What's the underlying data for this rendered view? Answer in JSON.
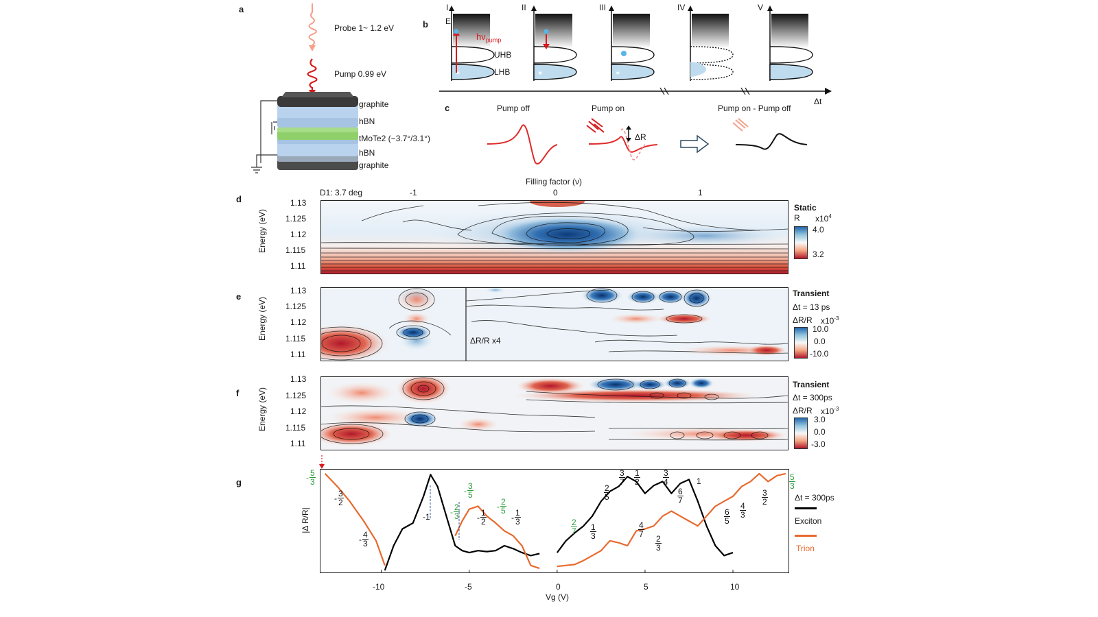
{
  "panel_letters": {
    "a": "a",
    "b": "b",
    "c": "c",
    "d": "d",
    "e": "e",
    "f": "f",
    "g": "g"
  },
  "panel_a": {
    "probe_label": "Probe 1~ 1.2 eV",
    "pump_label": "Pump 0.99 eV",
    "layers": [
      "graphite",
      "hBN",
      "tMoTe2 (~3.7°/3.1°)",
      "hBN",
      "graphite"
    ],
    "colors": {
      "probe": "#f4a08a",
      "pump": "#d7191c",
      "graphite": "#3a3a3a",
      "hbn": "#b9d3ee",
      "tmote2": "#8fd06b"
    }
  },
  "panel_b": {
    "stage_labels": [
      "I",
      "II",
      "III",
      "IV",
      "V"
    ],
    "energy_label": "E",
    "pump_label": "hν",
    "pump_subscript": "pump",
    "uhb_label": "UHB",
    "lhb_label": "LHB",
    "time_label": "Δt"
  },
  "panel_c": {
    "pump_off": "Pump off",
    "pump_on": "Pump on",
    "difference": "Pump on - Pump off",
    "delta_r": "ΔR"
  },
  "panel_d": {
    "top_axis_title": "Filling factor (ν)",
    "top_ticks": [
      "-1",
      "0",
      "1"
    ],
    "device_label": "D1: 3.7 deg",
    "ylabel": "Energy (eV)",
    "yticks": [
      "1.13",
      "1.125",
      "1.12",
      "1.115",
      "1.11"
    ],
    "cb_title": "Static",
    "cb_quantity": "R",
    "cb_scale": "x10",
    "cb_exp": "4",
    "cb_max": "4.0",
    "cb_min": "3.2"
  },
  "panel_e": {
    "ylabel": "Energy (eV)",
    "yticks": [
      "1.13",
      "1.125",
      "1.12",
      "1.115",
      "1.11"
    ],
    "cb_title": "Transient",
    "cb_delay": "Δt = 13 ps",
    "cb_quantity": "ΔR/R",
    "cb_scale": "x10",
    "cb_exp": "-3",
    "cb_max": "10.0",
    "cb_mid": "0.0",
    "cb_min": "-10.0",
    "inset_label": "ΔR/R x4"
  },
  "panel_f": {
    "ylabel": "Energy (eV)",
    "yticks": [
      "1.13",
      "1.125",
      "1.12",
      "1.115",
      "1.11"
    ],
    "cb_title": "Transient",
    "cb_delay": "Δt = 300ps",
    "cb_quantity": "ΔR/R",
    "cb_scale": "x10",
    "cb_exp": "-3",
    "cb_max": "3.0",
    "cb_mid": "0.0",
    "cb_min": "-3.0"
  },
  "panel_g": {
    "ylabel": "|Δ R/R|",
    "xlabel": "Vg (V)",
    "xticks": [
      "-10",
      "-5",
      "0",
      "5",
      "10"
    ],
    "legend_delay": "Δt = 300ps",
    "legend_exciton": "Exciton",
    "legend_trion": "Trion",
    "colors": {
      "exciton": "#000000",
      "trion": "#e8692e",
      "green": "#2e9a3c"
    },
    "fractions_exciton": [
      {
        "num": "3",
        "den": "2",
        "sign": "-"
      },
      {
        "num": "4",
        "den": "3",
        "sign": "-"
      },
      {
        "num": "",
        "den": "",
        "sign": "-1"
      },
      {
        "num": "1",
        "den": "2",
        "sign": "-"
      },
      {
        "num": "1",
        "den": "3",
        "sign": "-"
      },
      {
        "num": "1",
        "den": "3",
        "sign": ""
      },
      {
        "num": "2",
        "den": "5",
        "sign": ""
      },
      {
        "num": "3",
        "den": "7",
        "sign": ""
      },
      {
        "num": "1",
        "den": "2",
        "sign": ""
      },
      {
        "num": "3",
        "den": "4",
        "sign": ""
      },
      {
        "num": "6",
        "den": "7",
        "sign": ""
      },
      {
        "num": "",
        "den": "",
        "sign": "1"
      },
      {
        "num": "4",
        "den": "7",
        "sign": ""
      },
      {
        "num": "2",
        "den": "3",
        "sign": ""
      },
      {
        "num": "6",
        "den": "5",
        "sign": ""
      },
      {
        "num": "4",
        "den": "3",
        "sign": ""
      },
      {
        "num": "3",
        "den": "2",
        "sign": ""
      }
    ],
    "fractions_green": [
      {
        "num": "5",
        "den": "3",
        "sign": "-"
      },
      {
        "num": "3",
        "den": "5",
        "sign": "-"
      },
      {
        "num": "2",
        "den": "3",
        "sign": "-"
      },
      {
        "num": "2",
        "den": "5",
        "sign": "-"
      },
      {
        "num": "2",
        "den": "7",
        "sign": ""
      },
      {
        "num": "5",
        "den": "3",
        "sign": ""
      }
    ]
  },
  "chart_data": {
    "type": "line",
    "x": [
      -13.2,
      -12.5,
      -11.8,
      -11.0,
      -10.3,
      -9.8,
      -9.3,
      -8.8,
      -8.2,
      -7.6,
      -7.2,
      -6.8,
      -6.3,
      -5.8,
      -5.4,
      -5.0,
      -4.5,
      -4.0,
      -3.5,
      -3.0,
      -2.5,
      -2.0,
      -1.5,
      -1.0,
      -0.5,
      0.0,
      0.5,
      1.0,
      1.5,
      2.0,
      2.5,
      3.0,
      3.5,
      4.0,
      4.5,
      5.0,
      5.5,
      6.0,
      6.5,
      7.0,
      7.5,
      8.0,
      8.5,
      9.0,
      9.5,
      10.0,
      10.5,
      11.0,
      11.5,
      12.0,
      12.5,
      13.0
    ],
    "series": [
      {
        "name": "Exciton",
        "values": [
          null,
          null,
          null,
          null,
          null,
          0.0,
          0.25,
          0.42,
          0.48,
          0.75,
          0.97,
          0.85,
          0.55,
          0.25,
          0.2,
          0.18,
          0.2,
          0.19,
          0.2,
          0.25,
          0.22,
          0.18,
          0.15,
          0.17,
          null,
          0.18,
          0.3,
          0.38,
          0.45,
          0.55,
          0.7,
          0.8,
          0.85,
          0.95,
          0.9,
          0.78,
          0.86,
          0.9,
          0.78,
          0.88,
          0.92,
          0.7,
          0.45,
          0.25,
          0.15,
          0.18,
          null,
          null,
          null,
          null,
          null,
          null
        ]
      },
      {
        "name": "Trion",
        "values": [
          0.98,
          0.85,
          0.7,
          0.5,
          0.3,
          0.05,
          null,
          null,
          null,
          null,
          null,
          null,
          null,
          0.35,
          0.5,
          0.62,
          0.65,
          0.55,
          0.48,
          0.4,
          0.35,
          0.25,
          0.05,
          0.02,
          null,
          0.04,
          0.05,
          0.06,
          0.1,
          0.15,
          0.2,
          0.3,
          0.28,
          0.25,
          0.4,
          0.42,
          0.45,
          0.55,
          0.6,
          0.55,
          0.5,
          0.45,
          0.55,
          0.65,
          0.7,
          0.75,
          0.85,
          0.9,
          0.98,
          0.9,
          0.96,
          0.98
        ]
      }
    ],
    "xlabel": "Vg (V)",
    "ylabel": "|Δ R/R|",
    "xlim": [
      -13.5,
      13.2
    ]
  }
}
